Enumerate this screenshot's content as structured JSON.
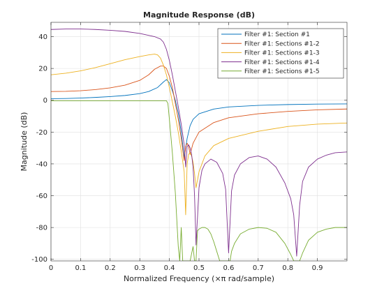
{
  "chart_data": {
    "type": "line",
    "title": "Magnitude Response (dB)",
    "xlabel": "Normalized Frequency  (×π rad/sample)",
    "ylabel": "Magnitude (dB)",
    "xlim": [
      0,
      1
    ],
    "ylim": [
      -101,
      49
    ],
    "xticks": [
      0,
      0.1,
      0.2,
      0.3,
      0.4,
      0.5,
      0.6,
      0.7,
      0.8,
      0.9
    ],
    "xtick_labels": [
      "0",
      "0.1",
      "0.2",
      "0.3",
      "0.4",
      "0.5",
      "0.6",
      "0.7",
      "0.8",
      "0.9"
    ],
    "yticks": [
      40,
      20,
      0,
      -20,
      -40,
      -60,
      -80,
      -100
    ],
    "ytick_labels": [
      "40",
      "20",
      "0",
      "-20",
      "-40",
      "-60",
      "-80",
      "-100"
    ],
    "grid": true,
    "legend_position": "top-right",
    "series": [
      {
        "name": "Filter #1: Section #1",
        "color": "#0072bd",
        "x": [
          0,
          0.05,
          0.1,
          0.15,
          0.2,
          0.25,
          0.3,
          0.33,
          0.36,
          0.38,
          0.39,
          0.4,
          0.41,
          0.42,
          0.43,
          0.44,
          0.45,
          0.455,
          0.46,
          0.47,
          0.48,
          0.5,
          0.55,
          0.6,
          0.7,
          0.8,
          0.9,
          1.0
        ],
        "y": [
          1,
          1.1,
          1.4,
          1.8,
          2.3,
          3,
          4.2,
          5.5,
          8,
          11.5,
          13,
          11,
          6,
          0,
          -8,
          -20,
          -36,
          -30,
          -24,
          -16,
          -12,
          -8.5,
          -5.5,
          -4.2,
          -3.2,
          -2.7,
          -2.4,
          -2.3
        ]
      },
      {
        "name": "Filter #1: Sections #1-2",
        "color": "#d95319",
        "x": [
          0,
          0.05,
          0.1,
          0.15,
          0.2,
          0.25,
          0.3,
          0.33,
          0.35,
          0.37,
          0.38,
          0.39,
          0.4,
          0.41,
          0.42,
          0.43,
          0.44,
          0.45,
          0.455,
          0.46,
          0.465,
          0.47,
          0.48,
          0.5,
          0.55,
          0.6,
          0.7,
          0.8,
          0.9,
          1.0
        ],
        "y": [
          5.5,
          5.6,
          6,
          6.7,
          7.8,
          9.5,
          12.5,
          16,
          19.5,
          21.5,
          21.5,
          20,
          15,
          8,
          -2,
          -12,
          -24,
          -38,
          -29,
          -27,
          -29,
          -34,
          -27,
          -20,
          -14,
          -11,
          -8.5,
          -7,
          -6,
          -5.5
        ]
      },
      {
        "name": "Filter #1: Sections #1-3",
        "color": "#edb120",
        "x": [
          0,
          0.05,
          0.1,
          0.15,
          0.2,
          0.25,
          0.3,
          0.33,
          0.35,
          0.36,
          0.37,
          0.38,
          0.39,
          0.4,
          0.41,
          0.42,
          0.43,
          0.44,
          0.45,
          0.455,
          0.46,
          0.465,
          0.47,
          0.475,
          0.48,
          0.485,
          0.49,
          0.5,
          0.52,
          0.55,
          0.6,
          0.7,
          0.8,
          0.9,
          1.0
        ],
        "y": [
          16,
          17,
          18.5,
          20.5,
          23,
          25.5,
          27.5,
          28.5,
          29,
          28.5,
          26.5,
          22,
          16,
          8,
          -1,
          -10,
          -20,
          -32,
          -45,
          -72,
          -40,
          -34,
          -33,
          -35,
          -39,
          -46,
          -55,
          -45,
          -35,
          -28.5,
          -24,
          -19.5,
          -16.5,
          -15,
          -14.3
        ]
      },
      {
        "name": "Filter #1: Sections #1-4",
        "color": "#7e2f8e",
        "x": [
          0,
          0.05,
          0.1,
          0.15,
          0.2,
          0.25,
          0.3,
          0.35,
          0.37,
          0.38,
          0.39,
          0.4,
          0.41,
          0.42,
          0.43,
          0.44,
          0.45,
          0.455,
          0.46,
          0.465,
          0.47,
          0.475,
          0.48,
          0.485,
          0.49,
          0.5,
          0.51,
          0.52,
          0.54,
          0.56,
          0.58,
          0.59,
          0.6,
          0.61,
          0.62,
          0.64,
          0.67,
          0.7,
          0.73,
          0.76,
          0.79,
          0.81,
          0.82,
          0.83,
          0.84,
          0.85,
          0.87,
          0.9,
          0.93,
          0.96,
          1.0
        ],
        "y": [
          44.5,
          44.8,
          44.8,
          44.5,
          44,
          43.3,
          42,
          40,
          38.5,
          36.5,
          32,
          25,
          16,
          6,
          -4,
          -15,
          -28,
          -42,
          -29,
          -28,
          -30,
          -34,
          -42,
          -60,
          -91,
          -55,
          -44,
          -40,
          -37,
          -39,
          -46,
          -56,
          -96,
          -57,
          -47,
          -40,
          -36,
          -35,
          -37,
          -42,
          -52,
          -62,
          -72,
          -98,
          -66,
          -51,
          -42,
          -37,
          -34.5,
          -33,
          -32.5
        ]
      },
      {
        "name": "Filter #1: Sections #1-5",
        "color": "#77ac30",
        "x": [
          0,
          0.05,
          0.1,
          0.15,
          0.2,
          0.25,
          0.3,
          0.35,
          0.38,
          0.39,
          0.395,
          0.4,
          0.41,
          0.42,
          0.43,
          0.435,
          0.44,
          0.445,
          0.45,
          0.46,
          0.47,
          0.48,
          0.485,
          0.49,
          0.495,
          0.5,
          0.51,
          0.52,
          0.53,
          0.54,
          0.55,
          0.56,
          0.57,
          0.58,
          0.59,
          0.595,
          0.6,
          0.605,
          0.61,
          0.62,
          0.64,
          0.67,
          0.7,
          0.73,
          0.76,
          0.79,
          0.81,
          0.82,
          0.83,
          0.835,
          0.84,
          0.85,
          0.87,
          0.9,
          0.93,
          0.96,
          1.0
        ],
        "y": [
          -0.3,
          -0.3,
          -0.3,
          -0.3,
          -0.3,
          -0.3,
          -0.3,
          -0.3,
          -0.3,
          -0.3,
          -2,
          -12,
          -33,
          -58,
          -92,
          -101,
          -80,
          -101,
          -101,
          -101,
          -101,
          -92,
          -101,
          -101,
          -82,
          -81,
          -80,
          -80,
          -81,
          -84,
          -89,
          -95,
          -101,
          -101,
          -101,
          -101,
          -101,
          -101,
          -95,
          -90,
          -84,
          -81,
          -80,
          -80.5,
          -83,
          -90,
          -97,
          -101,
          -101,
          -101,
          -101,
          -96,
          -88,
          -83,
          -81,
          -80,
          -80
        ]
      }
    ]
  }
}
